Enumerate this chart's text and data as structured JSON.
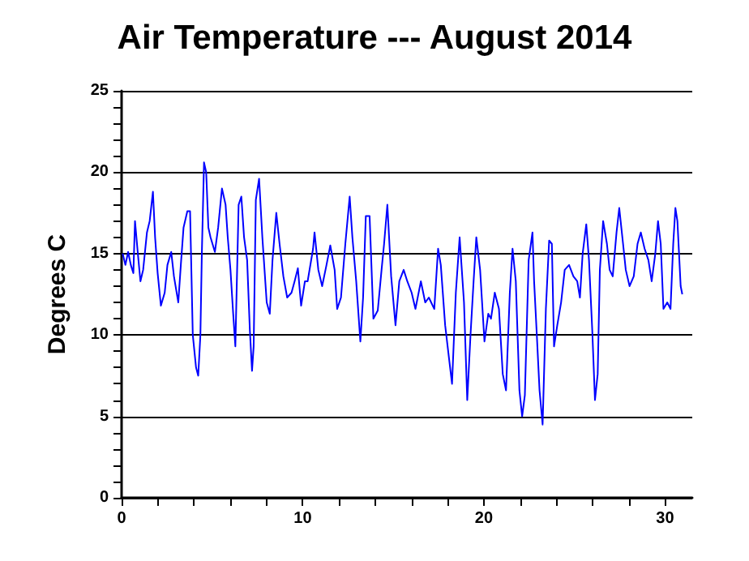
{
  "chart_data": {
    "type": "line",
    "title": "Air Temperature --- August 2014",
    "ylabel": "Degrees C",
    "x": [
      0.06,
      0.21,
      0.36,
      0.51,
      0.65,
      0.74,
      0.89,
      1.04,
      1.19,
      1.4,
      1.55,
      1.73,
      1.85,
      1.99,
      2.17,
      2.38,
      2.53,
      2.74,
      2.89,
      3.13,
      3.27,
      3.42,
      3.63,
      3.78,
      3.93,
      4.11,
      4.23,
      4.35,
      4.43,
      4.55,
      4.67,
      4.79,
      4.91,
      5.15,
      5.33,
      5.54,
      5.74,
      5.86,
      6.01,
      6.16,
      6.28,
      6.46,
      6.61,
      6.76,
      6.93,
      7.08,
      7.2,
      7.29,
      7.41,
      7.59,
      7.77,
      8.01,
      8.18,
      8.33,
      8.54,
      8.72,
      8.93,
      9.14,
      9.38,
      9.55,
      9.73,
      9.91,
      10.12,
      10.27,
      10.57,
      10.65,
      10.86,
      11.07,
      11.31,
      11.52,
      11.76,
      11.9,
      12.11,
      12.35,
      12.59,
      12.74,
      12.95,
      13.18,
      13.33,
      13.48,
      13.69,
      13.9,
      14.14,
      14.35,
      14.49,
      14.67,
      14.88,
      15.12,
      15.33,
      15.57,
      15.77,
      16.01,
      16.22,
      16.52,
      16.76,
      16.96,
      17.26,
      17.47,
      17.62,
      17.86,
      18.07,
      18.24,
      18.45,
      18.66,
      18.9,
      19.08,
      19.26,
      19.43,
      19.58,
      19.79,
      20.03,
      20.24,
      20.39,
      20.6,
      20.83,
      21.04,
      21.22,
      21.43,
      21.58,
      21.76,
      21.96,
      22.11,
      22.26,
      22.47,
      22.68,
      22.77,
      22.92,
      23.07,
      23.24,
      23.42,
      23.6,
      23.75,
      23.87,
      24.05,
      24.26,
      24.46,
      24.7,
      24.94,
      25.15,
      25.3,
      25.45,
      25.65,
      25.8,
      25.98,
      26.13,
      26.28,
      26.4,
      26.58,
      26.79,
      26.94,
      27.11,
      27.32,
      27.47,
      27.68,
      27.83,
      28.04,
      28.27,
      28.48,
      28.66,
      28.87,
      29.08,
      29.26,
      29.46,
      29.61,
      29.76,
      29.91,
      30.12,
      30.3,
      30.45,
      30.57,
      30.68,
      30.86,
      30.95
    ],
    "series": [
      {
        "color": "#0000ff",
        "values": [
          15.0,
          14.3,
          15.1,
          14.3,
          13.8,
          17.0,
          15.1,
          13.3,
          14.0,
          16.3,
          17.0,
          18.8,
          16.0,
          13.8,
          11.8,
          12.6,
          14.3,
          15.1,
          13.6,
          12.0,
          14.3,
          16.6,
          17.6,
          17.6,
          10.0,
          8.0,
          7.5,
          10.0,
          15.0,
          20.6,
          20.0,
          16.6,
          16.0,
          15.1,
          16.6,
          19.0,
          18.0,
          16.0,
          14.0,
          11.3,
          9.3,
          18.0,
          18.5,
          16.0,
          14.6,
          10.3,
          7.8,
          9.3,
          18.3,
          19.6,
          16.0,
          12.0,
          11.3,
          14.6,
          17.5,
          15.6,
          13.6,
          12.3,
          12.6,
          13.3,
          14.1,
          11.8,
          13.3,
          13.3,
          15.3,
          16.3,
          14.0,
          13.0,
          14.3,
          15.5,
          14.0,
          11.6,
          12.3,
          15.6,
          18.5,
          16.0,
          13.3,
          9.6,
          12.3,
          17.3,
          17.3,
          11.0,
          11.5,
          14.0,
          15.6,
          18.0,
          13.6,
          10.6,
          13.3,
          14.0,
          13.3,
          12.6,
          11.6,
          13.3,
          12.0,
          12.3,
          11.6,
          15.3,
          14.3,
          10.6,
          8.6,
          7.0,
          12.6,
          16.0,
          12.0,
          6.0,
          10.0,
          13.3,
          16.0,
          14.0,
          9.6,
          11.3,
          11.0,
          12.6,
          11.6,
          7.6,
          6.6,
          12.6,
          15.3,
          13.3,
          6.6,
          5.0,
          6.3,
          14.6,
          16.3,
          13.3,
          10.0,
          6.6,
          4.5,
          11.6,
          15.8,
          15.6,
          9.3,
          10.6,
          12.0,
          14.0,
          14.3,
          13.6,
          13.3,
          12.3,
          15.0,
          16.8,
          14.6,
          10.3,
          6.0,
          7.6,
          14.0,
          17.0,
          15.6,
          14.0,
          13.6,
          16.3,
          17.8,
          15.6,
          14.0,
          13.0,
          13.6,
          15.6,
          16.3,
          15.3,
          14.6,
          13.3,
          15.0,
          17.0,
          15.6,
          11.6,
          12.0,
          11.6,
          15.6,
          17.8,
          17.0,
          13.0,
          12.5
        ]
      }
    ],
    "xlim": [
      0,
      31.5
    ],
    "xticks": [
      0,
      {
        "value": 2,
        "label": null
      },
      {
        "value": 4,
        "label": null
      },
      {
        "value": 6,
        "label": null
      },
      {
        "value": 8,
        "label": null
      },
      10,
      {
        "value": 12,
        "label": null
      },
      {
        "value": 14,
        "label": null
      },
      {
        "value": 16,
        "label": null
      },
      {
        "value": 18,
        "label": null
      },
      20,
      {
        "value": 22,
        "label": null
      },
      {
        "value": 24,
        "label": null
      },
      {
        "value": 26,
        "label": null
      },
      {
        "value": 28,
        "label": null
      },
      30
    ],
    "ylim": [
      0,
      25
    ],
    "yticks": [
      0,
      {
        "value": 1,
        "label": null
      },
      {
        "value": 2,
        "label": null
      },
      {
        "value": 3,
        "label": null
      },
      {
        "value": 4,
        "label": null
      },
      5,
      {
        "value": 6,
        "label": null
      },
      {
        "value": 7,
        "label": null
      },
      {
        "value": 8,
        "label": null
      },
      {
        "value": 9,
        "label": null
      },
      10,
      {
        "value": 11,
        "label": null
      },
      {
        "value": 12,
        "label": null
      },
      {
        "value": 13,
        "label": null
      },
      {
        "value": 14,
        "label": null
      },
      15,
      {
        "value": 16,
        "label": null
      },
      {
        "value": 17,
        "label": null
      },
      {
        "value": 18,
        "label": null
      },
      {
        "value": 19,
        "label": null
      },
      20,
      {
        "value": 21,
        "label": null
      },
      {
        "value": 22,
        "label": null
      },
      {
        "value": 23,
        "label": null
      },
      {
        "value": 24,
        "label": null
      },
      25
    ],
    "grid": "y",
    "marker": "none",
    "line_style": "solid"
  }
}
